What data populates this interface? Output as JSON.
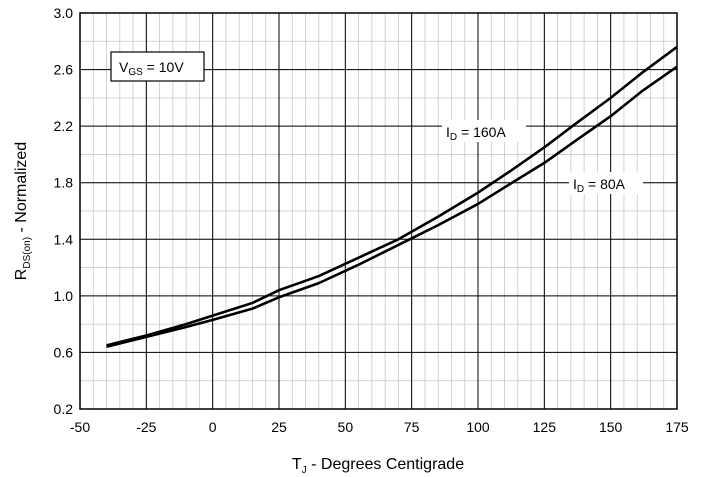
{
  "chart_data": {
    "type": "line",
    "xlabel": {
      "main": "T",
      "sub": "J",
      "rest": " - Degrees Centigrade"
    },
    "ylabel": {
      "main": "R",
      "sub": "DS(on)",
      "rest": " - Normalized"
    },
    "xlim": [
      -50,
      175
    ],
    "ylim": [
      0.2,
      3.0
    ],
    "x_ticks": [
      -50,
      -25,
      0,
      25,
      50,
      75,
      100,
      125,
      150,
      175
    ],
    "x_tick_labels": [
      "-50",
      "-25",
      "0",
      "25",
      "50",
      "75",
      "100",
      "125",
      "150",
      "175"
    ],
    "y_ticks": [
      0.2,
      0.6,
      1.0,
      1.4,
      1.8,
      2.2,
      2.6,
      3.0
    ],
    "y_tick_labels": [
      "0.2",
      "0.6",
      "1.0",
      "1.4",
      "1.8",
      "2.2",
      "2.6",
      "3.0"
    ],
    "minor_x_step": 5,
    "minor_y_step": 0.2,
    "grid": true,
    "annotations": {
      "vgs": {
        "main": "V",
        "sub": "GS",
        "rest": " = 10V"
      },
      "id160": {
        "main": "I",
        "sub": "D",
        "rest": " = 160A"
      },
      "id80": {
        "main": "I",
        "sub": "D",
        "rest": " = 80A"
      }
    },
    "series": [
      {
        "label_key": "id160",
        "x": [
          -40,
          -25,
          -10,
          0,
          15,
          25,
          40,
          55,
          70,
          85,
          100,
          112,
          125,
          137,
          150,
          162,
          175
        ],
        "y": [
          0.65,
          0.72,
          0.8,
          0.86,
          0.95,
          1.04,
          1.14,
          1.27,
          1.4,
          1.56,
          1.73,
          1.88,
          2.05,
          2.22,
          2.4,
          2.58,
          2.76
        ]
      },
      {
        "label_key": "id80",
        "x": [
          -40,
          -25,
          -10,
          0,
          15,
          25,
          40,
          55,
          70,
          85,
          100,
          112,
          125,
          137,
          150,
          162,
          175
        ],
        "y": [
          0.64,
          0.71,
          0.78,
          0.83,
          0.91,
          0.99,
          1.09,
          1.22,
          1.36,
          1.5,
          1.65,
          1.79,
          1.94,
          2.1,
          2.27,
          2.45,
          2.62
        ]
      }
    ]
  }
}
